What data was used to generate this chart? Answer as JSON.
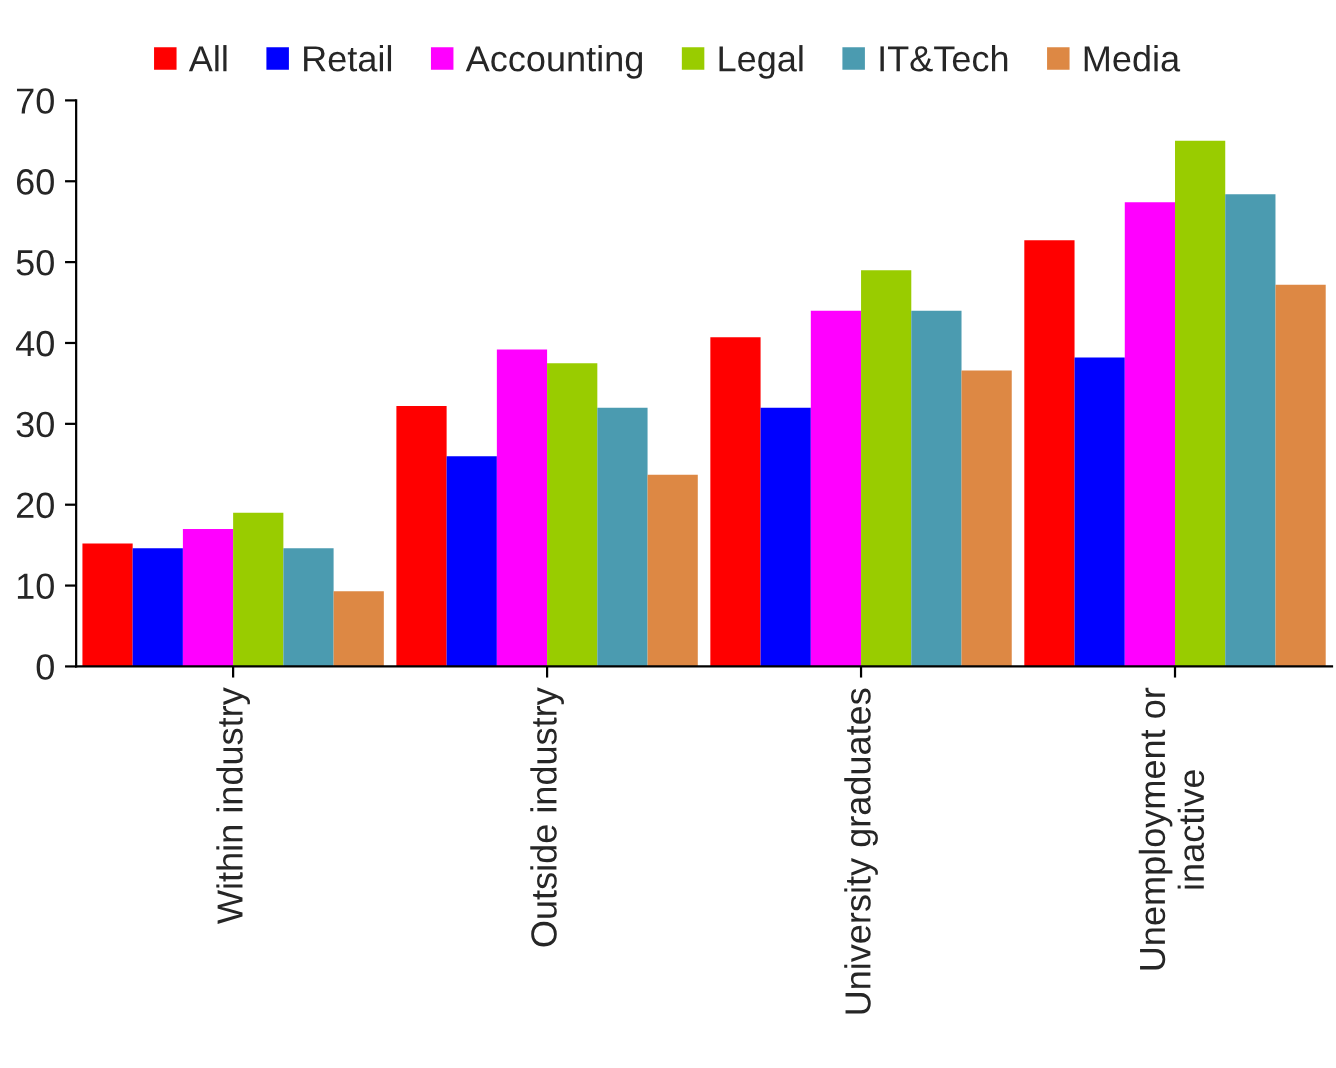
{
  "chart_data": {
    "type": "bar",
    "categories": [
      "Within industry",
      "Outside industry",
      "University graduates",
      "Unemployment or\ninactive"
    ],
    "series": [
      {
        "name": "All",
        "color": "#ff0000",
        "values": [
          15.2,
          32.2,
          40.7,
          52.7
        ]
      },
      {
        "name": "Retail",
        "color": "#0000ff",
        "values": [
          14.6,
          26,
          32,
          38.2
        ]
      },
      {
        "name": "Accounting",
        "color": "#ff00ff",
        "values": [
          17,
          39.2,
          44,
          57.4
        ]
      },
      {
        "name": "Legal",
        "color": "#99cc00",
        "values": [
          19,
          37.5,
          49,
          65
        ]
      },
      {
        "name": "IT&Tech",
        "color": "#4b9bb0",
        "values": [
          14.6,
          32,
          44,
          58.4
        ]
      },
      {
        "name": "Media",
        "color": "#dd8844",
        "values": [
          9.3,
          23.7,
          36.6,
          47.2
        ]
      }
    ],
    "ylim": [
      0,
      70
    ],
    "yticks": [
      0,
      10,
      20,
      30,
      40,
      50,
      60,
      70
    ],
    "grid": false,
    "legend": "top"
  }
}
